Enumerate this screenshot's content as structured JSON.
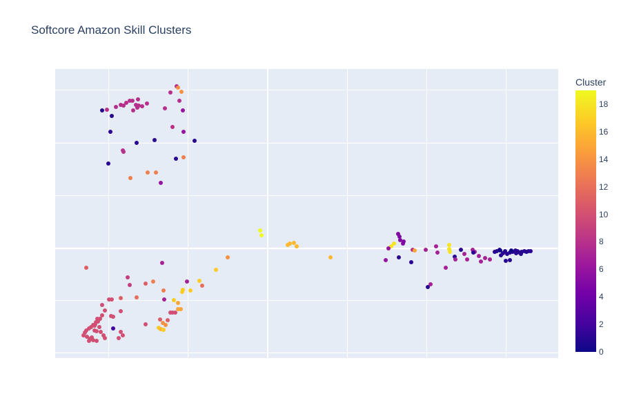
{
  "title": "Softcore Amazon Skill Clusters",
  "colorbar": {
    "title": "Cluster",
    "ticks": [
      "0",
      "2",
      "4",
      "6",
      "8",
      "10",
      "12",
      "14",
      "16",
      "18"
    ],
    "min": 0,
    "max": 19,
    "colors": [
      "#0d0887",
      "#46039f",
      "#7201a8",
      "#9c179e",
      "#bd3786",
      "#d8576b",
      "#ed7953",
      "#fb9f3a",
      "#fdca26",
      "#f0f921"
    ]
  },
  "chart_data": {
    "type": "scatter",
    "title": "Softcore Amazon Skill Clusters",
    "xlabel": "",
    "ylabel": "",
    "x_tick_labels_visible": false,
    "y_tick_labels_visible": false,
    "grid": true,
    "xlim": [
      0,
      729
    ],
    "ylim": [
      0,
      419
    ],
    "x_gridlines": [
      77,
      192,
      307,
      423,
      538,
      653
    ],
    "y_gridlines": [
      8,
      84,
      160,
      236,
      312,
      389
    ],
    "color_label": "Cluster",
    "color_range": [
      0,
      19
    ],
    "points": [
      {
        "x": 68,
        "y": 359,
        "c": 1
      },
      {
        "x": 75,
        "y": 360,
        "c": 8
      },
      {
        "x": 82,
        "y": 351,
        "c": 1
      },
      {
        "x": 80,
        "y": 328,
        "c": 1
      },
      {
        "x": 77,
        "y": 282,
        "c": 1
      },
      {
        "x": 88,
        "y": 364,
        "c": 8
      },
      {
        "x": 95,
        "y": 367,
        "c": 8
      },
      {
        "x": 99,
        "y": 366,
        "c": 8
      },
      {
        "x": 103,
        "y": 370,
        "c": 8
      },
      {
        "x": 108,
        "y": 373,
        "c": 8
      },
      {
        "x": 112,
        "y": 373,
        "c": 8
      },
      {
        "x": 120,
        "y": 375,
        "c": 8
      },
      {
        "x": 113,
        "y": 359,
        "c": 8
      },
      {
        "x": 117,
        "y": 367,
        "c": 8
      },
      {
        "x": 121,
        "y": 366,
        "c": 8
      },
      {
        "x": 126,
        "y": 365,
        "c": 8
      },
      {
        "x": 119,
        "y": 363,
        "c": 8
      },
      {
        "x": 133,
        "y": 369,
        "c": 8
      },
      {
        "x": 118,
        "y": 312,
        "c": 1
      },
      {
        "x": 144,
        "y": 316,
        "c": 1
      },
      {
        "x": 99,
        "y": 299,
        "c": 8
      },
      {
        "x": 98,
        "y": 301,
        "c": 8
      },
      {
        "x": 109,
        "y": 261,
        "c": 13
      },
      {
        "x": 134,
        "y": 269,
        "c": 13
      },
      {
        "x": 146,
        "y": 269,
        "c": 13
      },
      {
        "x": 153,
        "y": 254,
        "c": 6
      },
      {
        "x": 175,
        "y": 289,
        "c": 1
      },
      {
        "x": 186,
        "y": 291,
        "c": 13
      },
      {
        "x": 202,
        "y": 315,
        "c": 1
      },
      {
        "x": 186,
        "y": 328,
        "c": 6
      },
      {
        "x": 185,
        "y": 359,
        "c": 6
      },
      {
        "x": 170,
        "y": 335,
        "c": 8
      },
      {
        "x": 159,
        "y": 362,
        "c": 8
      },
      {
        "x": 180,
        "y": 373,
        "c": 8
      },
      {
        "x": 167,
        "y": 385,
        "c": 8
      },
      {
        "x": 176,
        "y": 394,
        "c": 8
      },
      {
        "x": 178,
        "y": 392,
        "c": 14
      },
      {
        "x": 183,
        "y": 386,
        "c": 14
      },
      {
        "x": 45,
        "y": 131,
        "c": 11
      },
      {
        "x": 155,
        "y": 138,
        "c": 7
      },
      {
        "x": 142,
        "y": 111,
        "c": 13
      },
      {
        "x": 105,
        "y": 117,
        "c": 9
      },
      {
        "x": 108,
        "y": 106,
        "c": 9
      },
      {
        "x": 78,
        "y": 85,
        "c": 10
      },
      {
        "x": 82,
        "y": 85,
        "c": 10
      },
      {
        "x": 95,
        "y": 87,
        "c": 11
      },
      {
        "x": 118,
        "y": 88,
        "c": 12
      },
      {
        "x": 131,
        "y": 108,
        "c": 11
      },
      {
        "x": 157,
        "y": 98,
        "c": 13
      },
      {
        "x": 191,
        "y": 111,
        "c": 7
      },
      {
        "x": 158,
        "y": 85,
        "c": 7
      },
      {
        "x": 68,
        "y": 77,
        "c": 10
      },
      {
        "x": 72,
        "y": 69,
        "c": 10
      },
      {
        "x": 81,
        "y": 61,
        "c": 10
      },
      {
        "x": 84,
        "y": 60,
        "c": 10
      },
      {
        "x": 95,
        "y": 68,
        "c": 10
      },
      {
        "x": 61,
        "y": 57,
        "c": 10
      },
      {
        "x": 59,
        "y": 52,
        "c": 10
      },
      {
        "x": 55,
        "y": 48,
        "c": 10
      },
      {
        "x": 52,
        "y": 45,
        "c": 10
      },
      {
        "x": 57,
        "y": 47,
        "c": 10
      },
      {
        "x": 49,
        "y": 43,
        "c": 10
      },
      {
        "x": 45,
        "y": 40,
        "c": 10
      },
      {
        "x": 43,
        "y": 37,
        "c": 10
      },
      {
        "x": 41,
        "y": 33,
        "c": 10
      },
      {
        "x": 46,
        "y": 31,
        "c": 10
      },
      {
        "x": 50,
        "y": 28,
        "c": 10
      },
      {
        "x": 53,
        "y": 30,
        "c": 10
      },
      {
        "x": 57,
        "y": 40,
        "c": 10
      },
      {
        "x": 60,
        "y": 39,
        "c": 10
      },
      {
        "x": 64,
        "y": 45,
        "c": 10
      },
      {
        "x": 66,
        "y": 38,
        "c": 10
      },
      {
        "x": 70,
        "y": 33,
        "c": 10
      },
      {
        "x": 72,
        "y": 29,
        "c": 10
      },
      {
        "x": 58,
        "y": 49,
        "c": 10
      },
      {
        "x": 62,
        "y": 53,
        "c": 10
      },
      {
        "x": 65,
        "y": 57,
        "c": 10
      },
      {
        "x": 68,
        "y": 62,
        "c": 10
      },
      {
        "x": 60,
        "y": 25,
        "c": 10
      },
      {
        "x": 55,
        "y": 26,
        "c": 10
      },
      {
        "x": 49,
        "y": 25,
        "c": 10
      },
      {
        "x": 92,
        "y": 29,
        "c": 10
      },
      {
        "x": 98,
        "y": 33,
        "c": 10
      },
      {
        "x": 84,
        "y": 43,
        "c": 2
      },
      {
        "x": 95,
        "y": 38,
        "c": 10
      },
      {
        "x": 131,
        "y": 49,
        "c": 10
      },
      {
        "x": 152,
        "y": 56,
        "c": 11
      },
      {
        "x": 156,
        "y": 51,
        "c": 14
      },
      {
        "x": 160,
        "y": 48,
        "c": 14
      },
      {
        "x": 163,
        "y": 55,
        "c": 11
      },
      {
        "x": 170,
        "y": 66,
        "c": 10
      },
      {
        "x": 167,
        "y": 66,
        "c": 10
      },
      {
        "x": 174,
        "y": 66,
        "c": 10
      },
      {
        "x": 178,
        "y": 71,
        "c": 15
      },
      {
        "x": 182,
        "y": 71,
        "c": 15
      },
      {
        "x": 185,
        "y": 99,
        "c": 17
      },
      {
        "x": 184,
        "y": 96,
        "c": 17
      },
      {
        "x": 196,
        "y": 98,
        "c": 17
      },
      {
        "x": 209,
        "y": 112,
        "c": 17
      },
      {
        "x": 213,
        "y": 105,
        "c": 12
      },
      {
        "x": 233,
        "y": 128,
        "c": 17
      },
      {
        "x": 250,
        "y": 146,
        "c": 14
      },
      {
        "x": 172,
        "y": 84,
        "c": 17
      },
      {
        "x": 178,
        "y": 80,
        "c": 15
      },
      {
        "x": 150,
        "y": 44,
        "c": 17
      },
      {
        "x": 153,
        "y": 42,
        "c": 16
      },
      {
        "x": 157,
        "y": 41,
        "c": 17
      },
      {
        "x": 297,
        "y": 185,
        "c": 19
      },
      {
        "x": 299,
        "y": 178,
        "c": 19
      },
      {
        "x": 337,
        "y": 164,
        "c": 16
      },
      {
        "x": 340,
        "y": 166,
        "c": 16
      },
      {
        "x": 346,
        "y": 167,
        "c": 16
      },
      {
        "x": 350,
        "y": 162,
        "c": 16
      },
      {
        "x": 399,
        "y": 146,
        "c": 16
      },
      {
        "x": 497,
        "y": 180,
        "c": 5
      },
      {
        "x": 499,
        "y": 176,
        "c": 5
      },
      {
        "x": 500,
        "y": 171,
        "c": 5
      },
      {
        "x": 505,
        "y": 169,
        "c": 5
      },
      {
        "x": 504,
        "y": 166,
        "c": 5
      },
      {
        "x": 491,
        "y": 166,
        "c": 18
      },
      {
        "x": 487,
        "y": 162,
        "c": 18
      },
      {
        "x": 483,
        "y": 159,
        "c": 6
      },
      {
        "x": 479,
        "y": 142,
        "c": 6
      },
      {
        "x": 498,
        "y": 146,
        "c": 1
      },
      {
        "x": 516,
        "y": 139,
        "c": 1
      },
      {
        "x": 518,
        "y": 157,
        "c": 8
      },
      {
        "x": 521,
        "y": 156,
        "c": 15
      },
      {
        "x": 537,
        "y": 157,
        "c": 7
      },
      {
        "x": 552,
        "y": 162,
        "c": 7
      },
      {
        "x": 554,
        "y": 153,
        "c": 7
      },
      {
        "x": 566,
        "y": 131,
        "c": 7
      },
      {
        "x": 571,
        "y": 164,
        "c": 18
      },
      {
        "x": 571,
        "y": 158,
        "c": 18
      },
      {
        "x": 572,
        "y": 154,
        "c": 18
      },
      {
        "x": 579,
        "y": 147,
        "c": 1
      },
      {
        "x": 580,
        "y": 143,
        "c": 7
      },
      {
        "x": 588,
        "y": 157,
        "c": 1
      },
      {
        "x": 593,
        "y": 151,
        "c": 7
      },
      {
        "x": 597,
        "y": 143,
        "c": 7
      },
      {
        "x": 544,
        "y": 107,
        "c": 7
      },
      {
        "x": 540,
        "y": 103,
        "c": 1
      },
      {
        "x": 605,
        "y": 157,
        "c": 7
      },
      {
        "x": 608,
        "y": 154,
        "c": 7
      },
      {
        "x": 606,
        "y": 153,
        "c": 1
      },
      {
        "x": 614,
        "y": 148,
        "c": 7
      },
      {
        "x": 617,
        "y": 140,
        "c": 7
      },
      {
        "x": 623,
        "y": 145,
        "c": 7
      },
      {
        "x": 630,
        "y": 143,
        "c": 7
      },
      {
        "x": 637,
        "y": 154,
        "c": 1
      },
      {
        "x": 640,
        "y": 155,
        "c": 1
      },
      {
        "x": 644,
        "y": 157,
        "c": 1
      },
      {
        "x": 646,
        "y": 149,
        "c": 1
      },
      {
        "x": 649,
        "y": 152,
        "c": 1
      },
      {
        "x": 652,
        "y": 155,
        "c": 1
      },
      {
        "x": 655,
        "y": 151,
        "c": 1
      },
      {
        "x": 659,
        "y": 153,
        "c": 1
      },
      {
        "x": 663,
        "y": 154,
        "c": 1
      },
      {
        "x": 667,
        "y": 156,
        "c": 1
      },
      {
        "x": 670,
        "y": 155,
        "c": 1
      },
      {
        "x": 673,
        "y": 153,
        "c": 1
      },
      {
        "x": 676,
        "y": 154,
        "c": 1
      },
      {
        "x": 680,
        "y": 155,
        "c": 1
      },
      {
        "x": 683,
        "y": 154,
        "c": 1
      },
      {
        "x": 686,
        "y": 155,
        "c": 1
      },
      {
        "x": 689,
        "y": 155,
        "c": 1
      },
      {
        "x": 668,
        "y": 152,
        "c": 1
      },
      {
        "x": 675,
        "y": 151,
        "c": 1
      },
      {
        "x": 653,
        "y": 141,
        "c": 1
      },
      {
        "x": 659,
        "y": 142,
        "c": 1
      },
      {
        "x": 645,
        "y": 156,
        "c": 0
      },
      {
        "x": 661,
        "y": 156,
        "c": 0
      }
    ]
  }
}
